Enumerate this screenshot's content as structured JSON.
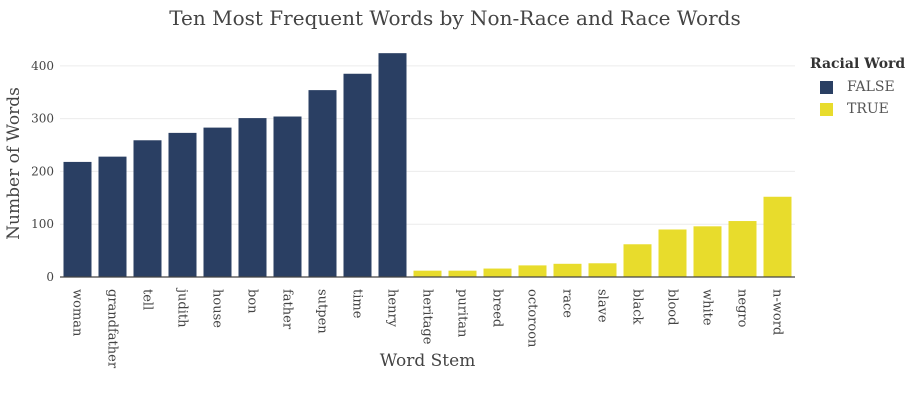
{
  "chart_data": {
    "type": "bar",
    "title": "Ten Most Frequent Words by Non-Race and Race Words",
    "xlabel": "Word Stem",
    "ylabel": "Number of Words",
    "ylim": [
      0,
      430
    ],
    "yticks": [
      0,
      100,
      200,
      300,
      400
    ],
    "grid": true,
    "legend_position": "top-right",
    "legend_title": "Racial Word",
    "categories": [
      "woman",
      "grandfather",
      "tell",
      "judith",
      "house",
      "bon",
      "father",
      "sutpen",
      "time",
      "henry",
      "heritage",
      "puritan",
      "breed",
      "octoroon",
      "race",
      "slave",
      "black",
      "blood",
      "white",
      "negro",
      "n-word"
    ],
    "series": [
      {
        "name": "FALSE",
        "color": "#2a3f63",
        "values": [
          218,
          228,
          259,
          273,
          283,
          301,
          304,
          354,
          385,
          424,
          null,
          null,
          null,
          null,
          null,
          null,
          null,
          null,
          null,
          null,
          null
        ]
      },
      {
        "name": "TRUE",
        "color": "#e8dc2c",
        "values": [
          null,
          null,
          null,
          null,
          null,
          null,
          null,
          null,
          null,
          null,
          12,
          12,
          16,
          22,
          25,
          26,
          62,
          90,
          96,
          106,
          152
        ]
      }
    ]
  }
}
